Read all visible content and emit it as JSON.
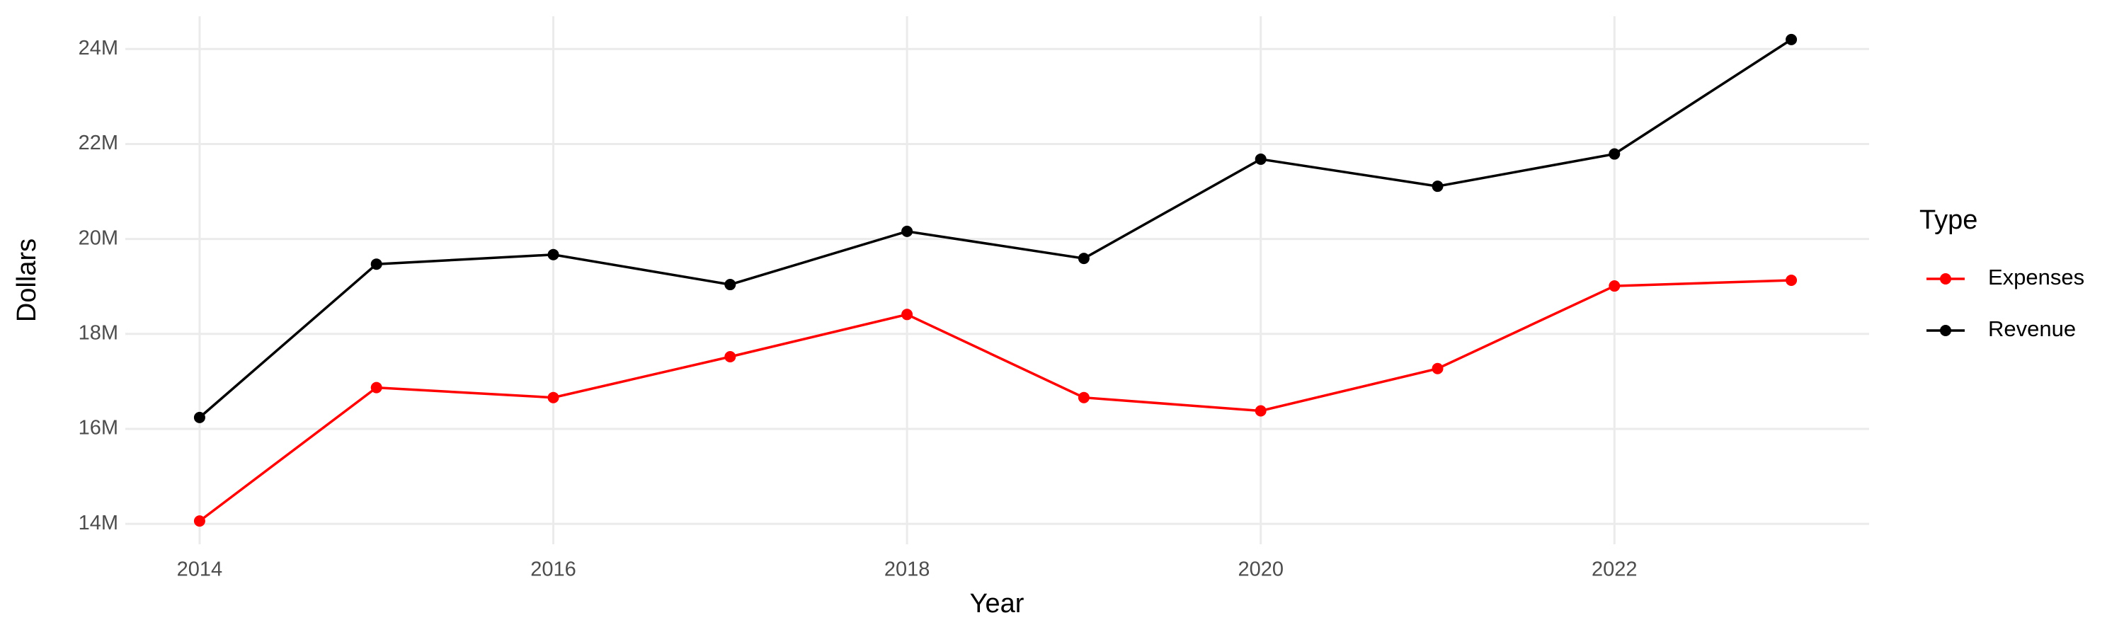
{
  "chart_data": {
    "type": "line",
    "x_label": "Year",
    "y_label": "Dollars",
    "legend_title": "Type",
    "legend_position": "right",
    "grid": true,
    "x": [
      2014,
      2015,
      2016,
      2017,
      2018,
      2019,
      2020,
      2021,
      2022,
      2023
    ],
    "series": [
      {
        "name": "Expenses",
        "color": "#ff0000",
        "values": [
          14060000,
          16870000,
          16660000,
          17520000,
          18410000,
          16660000,
          16380000,
          17270000,
          19010000,
          19130000
        ]
      },
      {
        "name": "Revenue",
        "color": "#000000",
        "values": [
          16240000,
          19470000,
          19670000,
          19040000,
          20160000,
          19590000,
          21680000,
          21110000,
          21790000,
          24200000
        ]
      }
    ],
    "xlim": [
      2013.58,
      2023.44
    ],
    "xticks": [
      2014,
      2016,
      2018,
      2020,
      2022
    ],
    "ylim": [
      13570000,
      24690000
    ],
    "yticks": [
      {
        "value": 14000000,
        "label": "14M"
      },
      {
        "value": 16000000,
        "label": "16M"
      },
      {
        "value": 18000000,
        "label": "18M"
      },
      {
        "value": 20000000,
        "label": "20M"
      },
      {
        "value": 22000000,
        "label": "22M"
      },
      {
        "value": 24000000,
        "label": "24M"
      }
    ]
  }
}
